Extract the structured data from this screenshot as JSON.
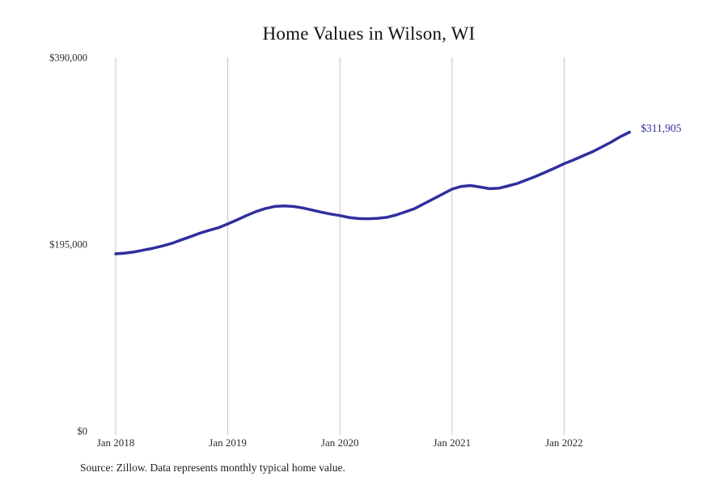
{
  "page": {
    "background": "#ffffff"
  },
  "chart_data": {
    "type": "line",
    "title": "Home Values in Wilson, WI",
    "series_name": "Monthly typical home value",
    "x": [
      "2018-01",
      "2018-02",
      "2018-03",
      "2018-04",
      "2018-05",
      "2018-06",
      "2018-07",
      "2018-08",
      "2018-09",
      "2018-10",
      "2018-11",
      "2018-12",
      "2019-01",
      "2019-02",
      "2019-03",
      "2019-04",
      "2019-05",
      "2019-06",
      "2019-07",
      "2019-08",
      "2019-09",
      "2019-10",
      "2019-11",
      "2019-12",
      "2020-01",
      "2020-02",
      "2020-03",
      "2020-04",
      "2020-05",
      "2020-06",
      "2020-07",
      "2020-08",
      "2020-09",
      "2020-10",
      "2020-11",
      "2020-12",
      "2021-01",
      "2021-02",
      "2021-03",
      "2021-04",
      "2021-05",
      "2021-06",
      "2021-07",
      "2021-08",
      "2021-09",
      "2021-10",
      "2021-11",
      "2021-12",
      "2022-01",
      "2022-02",
      "2022-03",
      "2022-04",
      "2022-05",
      "2022-06",
      "2022-07",
      "2022-08"
    ],
    "values": [
      184900,
      185600,
      186900,
      188800,
      190700,
      193100,
      195800,
      199400,
      202800,
      206400,
      209400,
      212100,
      216100,
      220300,
      224800,
      228900,
      232100,
      234300,
      234900,
      234300,
      232800,
      230600,
      228400,
      226400,
      224800,
      222800,
      221700,
      221500,
      221900,
      222900,
      225400,
      228700,
      232100,
      237200,
      242200,
      247300,
      252400,
      255300,
      256200,
      254600,
      252900,
      253300,
      255800,
      258400,
      262100,
      265900,
      270100,
      274400,
      279000,
      282900,
      287100,
      291300,
      296300,
      301400,
      307100,
      311905
    ],
    "ylim": [
      0,
      390000
    ],
    "y_ticks": [
      {
        "value": 0,
        "label": "$0"
      },
      {
        "value": 195000,
        "label": "$195,000"
      },
      {
        "value": 390000,
        "label": "$390,000"
      }
    ],
    "x_ticks": [
      {
        "index": 0,
        "label": "Jan 2018"
      },
      {
        "index": 12,
        "label": "Jan 2019"
      },
      {
        "index": 24,
        "label": "Jan 2020"
      },
      {
        "index": 36,
        "label": "Jan 2021"
      },
      {
        "index": 48,
        "label": "Jan 2022"
      }
    ],
    "end_label": "$311,905",
    "grid": "vertical-only",
    "legend": "none",
    "colors": {
      "line": "#2f2f9e",
      "end_label": "#2f2f9e",
      "grid": "#c4c4c4",
      "axis_text": "#2b2b2b",
      "title": "#111111"
    }
  },
  "source_note": "Source: Zillow. Data represents monthly typical home value."
}
